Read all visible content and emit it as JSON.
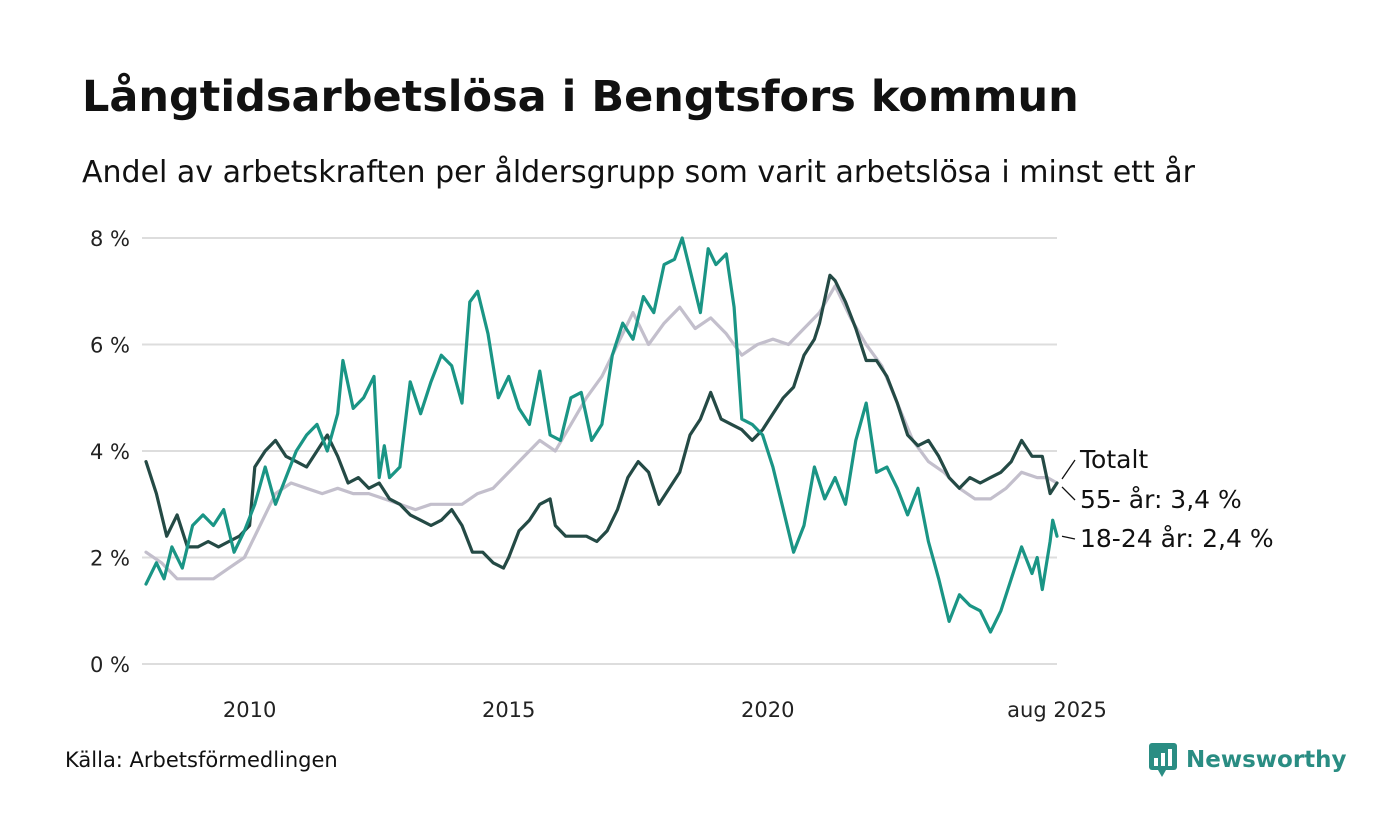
{
  "header": {
    "title": "Långtidsarbetslösa i Bengtsfors kommun",
    "subtitle": "Andel av arbetskraften per åldersgrupp som varit arbetslösa i minst ett år"
  },
  "footer": {
    "source": "Källa: Arbetsförmedlingen",
    "brand": "Newsworthy"
  },
  "colors": {
    "total": "#c3bfcc",
    "age55": "#244a45",
    "age18_24": "#1a9585",
    "grid": "#dddddd",
    "brand": "#2a8d83"
  },
  "chart_data": {
    "type": "line",
    "y_axis": {
      "min": 0,
      "max": 8,
      "ticks": [
        0,
        2,
        4,
        6,
        8
      ],
      "tick_labels": [
        "0 %",
        "2 %",
        "4 %",
        "6 %",
        "8 %"
      ]
    },
    "x_axis": {
      "min": 2008.0,
      "max": 2025.583,
      "ticks": [
        2010,
        2015,
        2020,
        2025.583
      ],
      "tick_labels": [
        "2010",
        "2015",
        "2020",
        "aug 2025"
      ]
    },
    "grid": true,
    "series": [
      {
        "name": "Totalt",
        "end_label": "Totalt",
        "color": "#c3bfcc",
        "points": [
          [
            2008.0,
            2.1
          ],
          [
            2008.3,
            1.9
          ],
          [
            2008.6,
            1.6
          ],
          [
            2009.0,
            1.6
          ],
          [
            2009.3,
            1.6
          ],
          [
            2009.6,
            1.8
          ],
          [
            2009.9,
            2.0
          ],
          [
            2010.2,
            2.6
          ],
          [
            2010.5,
            3.2
          ],
          [
            2010.8,
            3.4
          ],
          [
            2011.1,
            3.3
          ],
          [
            2011.4,
            3.2
          ],
          [
            2011.7,
            3.3
          ],
          [
            2012.0,
            3.2
          ],
          [
            2012.3,
            3.2
          ],
          [
            2012.6,
            3.1
          ],
          [
            2012.9,
            3.0
          ],
          [
            2013.2,
            2.9
          ],
          [
            2013.5,
            3.0
          ],
          [
            2013.8,
            3.0
          ],
          [
            2014.1,
            3.0
          ],
          [
            2014.4,
            3.2
          ],
          [
            2014.7,
            3.3
          ],
          [
            2015.0,
            3.6
          ],
          [
            2015.3,
            3.9
          ],
          [
            2015.6,
            4.2
          ],
          [
            2015.9,
            4.0
          ],
          [
            2016.2,
            4.5
          ],
          [
            2016.5,
            5.0
          ],
          [
            2016.8,
            5.4
          ],
          [
            2017.1,
            6.0
          ],
          [
            2017.4,
            6.6
          ],
          [
            2017.7,
            6.0
          ],
          [
            2018.0,
            6.4
          ],
          [
            2018.3,
            6.7
          ],
          [
            2018.6,
            6.3
          ],
          [
            2018.9,
            6.5
          ],
          [
            2019.2,
            6.2
          ],
          [
            2019.5,
            5.8
          ],
          [
            2019.8,
            6.0
          ],
          [
            2020.1,
            6.1
          ],
          [
            2020.4,
            6.0
          ],
          [
            2020.7,
            6.3
          ],
          [
            2021.0,
            6.6
          ],
          [
            2021.3,
            7.1
          ],
          [
            2021.6,
            6.5
          ],
          [
            2021.9,
            6.0
          ],
          [
            2022.2,
            5.6
          ],
          [
            2022.5,
            4.9
          ],
          [
            2022.8,
            4.2
          ],
          [
            2023.1,
            3.8
          ],
          [
            2023.4,
            3.6
          ],
          [
            2023.7,
            3.3
          ],
          [
            2024.0,
            3.1
          ],
          [
            2024.3,
            3.1
          ],
          [
            2024.6,
            3.3
          ],
          [
            2024.9,
            3.6
          ],
          [
            2025.2,
            3.5
          ],
          [
            2025.4,
            3.5
          ],
          [
            2025.583,
            3.4
          ]
        ]
      },
      {
        "name": "55- år",
        "end_label": "55- år: 3,4 %",
        "color": "#244a45",
        "points": [
          [
            2008.0,
            3.8
          ],
          [
            2008.2,
            3.2
          ],
          [
            2008.4,
            2.4
          ],
          [
            2008.6,
            2.8
          ],
          [
            2008.8,
            2.2
          ],
          [
            2009.0,
            2.2
          ],
          [
            2009.2,
            2.3
          ],
          [
            2009.4,
            2.2
          ],
          [
            2009.6,
            2.3
          ],
          [
            2009.8,
            2.4
          ],
          [
            2010.0,
            2.6
          ],
          [
            2010.1,
            3.7
          ],
          [
            2010.3,
            4.0
          ],
          [
            2010.5,
            4.2
          ],
          [
            2010.7,
            3.9
          ],
          [
            2010.9,
            3.8
          ],
          [
            2011.1,
            3.7
          ],
          [
            2011.3,
            4.0
          ],
          [
            2011.5,
            4.3
          ],
          [
            2011.7,
            3.9
          ],
          [
            2011.9,
            3.4
          ],
          [
            2012.1,
            3.5
          ],
          [
            2012.3,
            3.3
          ],
          [
            2012.5,
            3.4
          ],
          [
            2012.7,
            3.1
          ],
          [
            2012.9,
            3.0
          ],
          [
            2013.1,
            2.8
          ],
          [
            2013.3,
            2.7
          ],
          [
            2013.5,
            2.6
          ],
          [
            2013.7,
            2.7
          ],
          [
            2013.9,
            2.9
          ],
          [
            2014.1,
            2.6
          ],
          [
            2014.3,
            2.1
          ],
          [
            2014.5,
            2.1
          ],
          [
            2014.7,
            1.9
          ],
          [
            2014.9,
            1.8
          ],
          [
            2015.0,
            2.0
          ],
          [
            2015.2,
            2.5
          ],
          [
            2015.4,
            2.7
          ],
          [
            2015.6,
            3.0
          ],
          [
            2015.8,
            3.1
          ],
          [
            2015.9,
            2.6
          ],
          [
            2016.1,
            2.4
          ],
          [
            2016.3,
            2.4
          ],
          [
            2016.5,
            2.4
          ],
          [
            2016.7,
            2.3
          ],
          [
            2016.9,
            2.5
          ],
          [
            2017.1,
            2.9
          ],
          [
            2017.3,
            3.5
          ],
          [
            2017.5,
            3.8
          ],
          [
            2017.7,
            3.6
          ],
          [
            2017.9,
            3.0
          ],
          [
            2018.1,
            3.3
          ],
          [
            2018.3,
            3.6
          ],
          [
            2018.5,
            4.3
          ],
          [
            2018.7,
            4.6
          ],
          [
            2018.9,
            5.1
          ],
          [
            2019.1,
            4.6
          ],
          [
            2019.3,
            4.5
          ],
          [
            2019.5,
            4.4
          ],
          [
            2019.7,
            4.2
          ],
          [
            2019.9,
            4.4
          ],
          [
            2020.1,
            4.7
          ],
          [
            2020.3,
            5.0
          ],
          [
            2020.5,
            5.2
          ],
          [
            2020.7,
            5.8
          ],
          [
            2020.9,
            6.1
          ],
          [
            2021.0,
            6.4
          ],
          [
            2021.2,
            7.3
          ],
          [
            2021.3,
            7.2
          ],
          [
            2021.5,
            6.8
          ],
          [
            2021.7,
            6.3
          ],
          [
            2021.9,
            5.7
          ],
          [
            2022.1,
            5.7
          ],
          [
            2022.3,
            5.4
          ],
          [
            2022.5,
            4.9
          ],
          [
            2022.7,
            4.3
          ],
          [
            2022.9,
            4.1
          ],
          [
            2023.1,
            4.2
          ],
          [
            2023.3,
            3.9
          ],
          [
            2023.5,
            3.5
          ],
          [
            2023.7,
            3.3
          ],
          [
            2023.9,
            3.5
          ],
          [
            2024.1,
            3.4
          ],
          [
            2024.3,
            3.5
          ],
          [
            2024.5,
            3.6
          ],
          [
            2024.7,
            3.8
          ],
          [
            2024.9,
            4.2
          ],
          [
            2025.1,
            3.9
          ],
          [
            2025.3,
            3.9
          ],
          [
            2025.45,
            3.2
          ],
          [
            2025.583,
            3.4
          ]
        ]
      },
      {
        "name": "18-24 år",
        "end_label": "18-24 år: 2,4 %",
        "color": "#1a9585",
        "points": [
          [
            2008.0,
            1.5
          ],
          [
            2008.2,
            1.9
          ],
          [
            2008.35,
            1.6
          ],
          [
            2008.5,
            2.2
          ],
          [
            2008.7,
            1.8
          ],
          [
            2008.9,
            2.6
          ],
          [
            2009.1,
            2.8
          ],
          [
            2009.3,
            2.6
          ],
          [
            2009.5,
            2.9
          ],
          [
            2009.7,
            2.1
          ],
          [
            2009.9,
            2.5
          ],
          [
            2010.1,
            3.0
          ],
          [
            2010.3,
            3.7
          ],
          [
            2010.5,
            3.0
          ],
          [
            2010.7,
            3.5
          ],
          [
            2010.9,
            4.0
          ],
          [
            2011.1,
            4.3
          ],
          [
            2011.3,
            4.5
          ],
          [
            2011.5,
            4.0
          ],
          [
            2011.7,
            4.7
          ],
          [
            2011.8,
            5.7
          ],
          [
            2012.0,
            4.8
          ],
          [
            2012.2,
            5.0
          ],
          [
            2012.4,
            5.4
          ],
          [
            2012.5,
            3.5
          ],
          [
            2012.6,
            4.1
          ],
          [
            2012.7,
            3.5
          ],
          [
            2012.9,
            3.7
          ],
          [
            2013.1,
            5.3
          ],
          [
            2013.3,
            4.7
          ],
          [
            2013.5,
            5.3
          ],
          [
            2013.7,
            5.8
          ],
          [
            2013.9,
            5.6
          ],
          [
            2014.1,
            4.9
          ],
          [
            2014.25,
            6.8
          ],
          [
            2014.4,
            7.0
          ],
          [
            2014.6,
            6.2
          ],
          [
            2014.8,
            5.0
          ],
          [
            2015.0,
            5.4
          ],
          [
            2015.2,
            4.8
          ],
          [
            2015.4,
            4.5
          ],
          [
            2015.6,
            5.5
          ],
          [
            2015.8,
            4.3
          ],
          [
            2016.0,
            4.2
          ],
          [
            2016.2,
            5.0
          ],
          [
            2016.4,
            5.1
          ],
          [
            2016.6,
            4.2
          ],
          [
            2016.8,
            4.5
          ],
          [
            2017.0,
            5.8
          ],
          [
            2017.2,
            6.4
          ],
          [
            2017.4,
            6.1
          ],
          [
            2017.6,
            6.9
          ],
          [
            2017.8,
            6.6
          ],
          [
            2018.0,
            7.5
          ],
          [
            2018.2,
            7.6
          ],
          [
            2018.35,
            8.0
          ],
          [
            2018.5,
            7.4
          ],
          [
            2018.7,
            6.6
          ],
          [
            2018.85,
            7.8
          ],
          [
            2019.0,
            7.5
          ],
          [
            2019.2,
            7.7
          ],
          [
            2019.35,
            6.7
          ],
          [
            2019.5,
            4.6
          ],
          [
            2019.7,
            4.5
          ],
          [
            2019.9,
            4.3
          ],
          [
            2020.1,
            3.7
          ],
          [
            2020.3,
            2.9
          ],
          [
            2020.5,
            2.1
          ],
          [
            2020.7,
            2.6
          ],
          [
            2020.9,
            3.7
          ],
          [
            2021.1,
            3.1
          ],
          [
            2021.3,
            3.5
          ],
          [
            2021.5,
            3.0
          ],
          [
            2021.7,
            4.2
          ],
          [
            2021.9,
            4.9
          ],
          [
            2022.1,
            3.6
          ],
          [
            2022.3,
            3.7
          ],
          [
            2022.5,
            3.3
          ],
          [
            2022.7,
            2.8
          ],
          [
            2022.9,
            3.3
          ],
          [
            2023.1,
            2.3
          ],
          [
            2023.3,
            1.6
          ],
          [
            2023.5,
            0.8
          ],
          [
            2023.7,
            1.3
          ],
          [
            2023.9,
            1.1
          ],
          [
            2024.1,
            1.0
          ],
          [
            2024.3,
            0.6
          ],
          [
            2024.5,
            1.0
          ],
          [
            2024.7,
            1.6
          ],
          [
            2024.9,
            2.2
          ],
          [
            2025.1,
            1.7
          ],
          [
            2025.2,
            2.0
          ],
          [
            2025.3,
            1.4
          ],
          [
            2025.4,
            2.0
          ],
          [
            2025.45,
            2.3
          ],
          [
            2025.5,
            2.7
          ],
          [
            2025.583,
            2.4
          ]
        ]
      }
    ]
  }
}
